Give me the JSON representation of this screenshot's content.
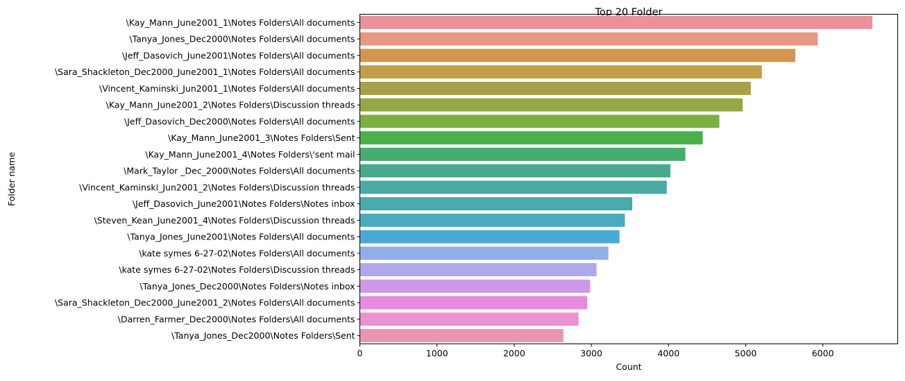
{
  "chart_data": {
    "type": "bar",
    "orientation": "horizontal",
    "title": "Top 20 Folder",
    "xlabel": "Count",
    "ylabel": "Folder name",
    "xlim": [
      0,
      6970
    ],
    "xticks": [
      0,
      1000,
      2000,
      3000,
      4000,
      5000,
      6000
    ],
    "grid": false,
    "categories": [
      "\\Kay_Mann_June2001_1\\Notes Folders\\All documents",
      "\\Tanya_Jones_Dec2000\\Notes Folders\\All documents",
      "\\Jeff_Dasovich_June2001\\Notes Folders\\All documents",
      "\\Sara_Shackleton_Dec2000_June2001_1\\Notes Folders\\All documents",
      "\\Vincent_Kaminski_Jun2001_1\\Notes Folders\\All documents",
      "\\Kay_Mann_June2001_2\\Notes Folders\\Discussion threads",
      "\\Jeff_Dasovich_Dec2000\\Notes Folders\\All documents",
      "\\Kay_Mann_June2001_3\\Notes Folders\\Sent",
      "\\Kay_Mann_June2001_4\\Notes Folders\\'sent mail",
      "\\Mark_Taylor _Dec_2000\\Notes Folders\\All documents",
      "\\Vincent_Kaminski_Jun2001_2\\Notes Folders\\Discussion threads",
      "\\Jeff_Dasovich_June2001\\Notes Folders\\Notes inbox",
      "\\Steven_Kean_June2001_4\\Notes Folders\\Discussion threads",
      "\\Tanya_Jones_June2001\\Notes Folders\\All documents",
      "\\kate symes 6-27-02\\Notes Folders\\All documents",
      "\\kate symes 6-27-02\\Notes Folders\\Discussion threads",
      "\\Tanya_Jones_Dec2000\\Notes Folders\\Notes inbox",
      "\\Sara_Shackleton_Dec2000_June2001_2\\Notes Folders\\All documents",
      "\\Darren_Farmer_Dec2000\\Notes Folders\\All documents",
      "\\Tanya_Jones_Dec2000\\Notes Folders\\Sent"
    ],
    "values": [
      6642,
      5934,
      5643,
      5209,
      5066,
      4960,
      4659,
      4443,
      4218,
      4024,
      3977,
      3530,
      3435,
      3365,
      3221,
      3067,
      2985,
      2948,
      2834,
      2638
    ],
    "colors": [
      "#e8929a",
      "#e69882",
      "#d39550",
      "#c09e4a",
      "#a8a045",
      "#93a846",
      "#7cb03e",
      "#4ab04a",
      "#46ad6e",
      "#48aa8a",
      "#4aaaa5",
      "#4aaaac",
      "#4aaac0",
      "#4aaad6",
      "#92aee8",
      "#b0a8eb",
      "#cd98e6",
      "#e78ae0",
      "#ec90cf",
      "#e896b4"
    ]
  }
}
